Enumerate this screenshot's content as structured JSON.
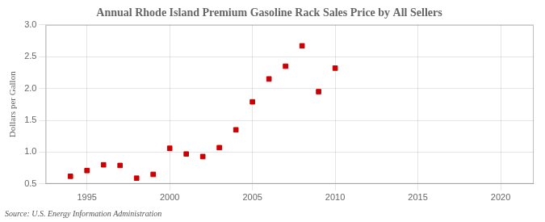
{
  "chart_data": {
    "type": "scatter",
    "title": "Annual Rhode Island Premium Gasoline Rack Sales Price by All Sellers",
    "ylabel": "Dollars per Gallon",
    "annotations": [
      "Source: U.S. Energy Information Administration"
    ],
    "x": [
      1994,
      1995,
      1996,
      1997,
      1998,
      1999,
      2000,
      2001,
      2002,
      2003,
      2004,
      2005,
      2006,
      2007,
      2008,
      2009,
      2010
    ],
    "values": [
      0.62,
      0.71,
      0.8,
      0.79,
      0.59,
      0.65,
      1.06,
      0.97,
      0.93,
      1.07,
      1.35,
      1.79,
      2.15,
      2.35,
      2.67,
      1.95,
      2.32
    ],
    "xlim": [
      1992.5,
      2022
    ],
    "xticks": [
      1995,
      2000,
      2005,
      2010,
      2015,
      2020
    ],
    "ylim": [
      0.5,
      3.0
    ],
    "yticks": [
      0.5,
      {
        "value": 1.0,
        "label": "1.0"
      },
      1.5,
      {
        "value": 2.0,
        "label": "2.0"
      },
      2.5,
      {
        "value": 3.0,
        "label": "3.0"
      }
    ],
    "color": "#cc0000",
    "marker": "square",
    "grid": true
  }
}
